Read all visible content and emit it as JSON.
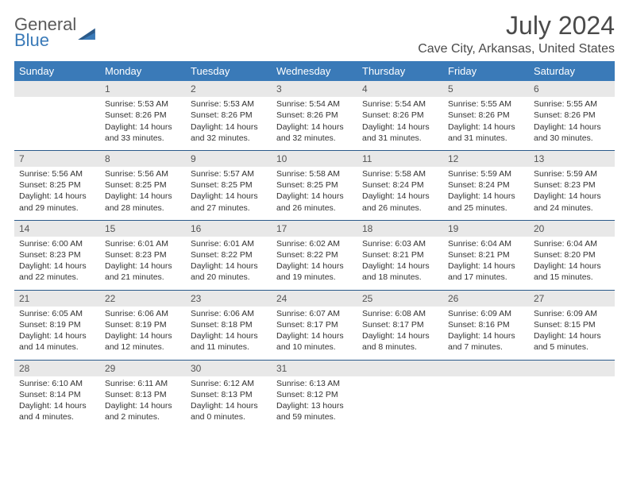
{
  "logo": {
    "word1": "General",
    "word2": "Blue"
  },
  "colors": {
    "header_bg": "#3a7ab8",
    "daynum_bg": "#e8e8e8",
    "sep": "#2a5a8a",
    "text": "#333333",
    "accent": "#3a7ab8"
  },
  "title": "July 2024",
  "location": "Cave City, Arkansas, United States",
  "day_names": [
    "Sunday",
    "Monday",
    "Tuesday",
    "Wednesday",
    "Thursday",
    "Friday",
    "Saturday"
  ],
  "weeks": [
    [
      {
        "num": "",
        "empty": true
      },
      {
        "num": "1",
        "sunrise": "Sunrise: 5:53 AM",
        "sunset": "Sunset: 8:26 PM",
        "daylight": "Daylight: 14 hours and 33 minutes."
      },
      {
        "num": "2",
        "sunrise": "Sunrise: 5:53 AM",
        "sunset": "Sunset: 8:26 PM",
        "daylight": "Daylight: 14 hours and 32 minutes."
      },
      {
        "num": "3",
        "sunrise": "Sunrise: 5:54 AM",
        "sunset": "Sunset: 8:26 PM",
        "daylight": "Daylight: 14 hours and 32 minutes."
      },
      {
        "num": "4",
        "sunrise": "Sunrise: 5:54 AM",
        "sunset": "Sunset: 8:26 PM",
        "daylight": "Daylight: 14 hours and 31 minutes."
      },
      {
        "num": "5",
        "sunrise": "Sunrise: 5:55 AM",
        "sunset": "Sunset: 8:26 PM",
        "daylight": "Daylight: 14 hours and 31 minutes."
      },
      {
        "num": "6",
        "sunrise": "Sunrise: 5:55 AM",
        "sunset": "Sunset: 8:26 PM",
        "daylight": "Daylight: 14 hours and 30 minutes."
      }
    ],
    [
      {
        "num": "7",
        "sunrise": "Sunrise: 5:56 AM",
        "sunset": "Sunset: 8:25 PM",
        "daylight": "Daylight: 14 hours and 29 minutes."
      },
      {
        "num": "8",
        "sunrise": "Sunrise: 5:56 AM",
        "sunset": "Sunset: 8:25 PM",
        "daylight": "Daylight: 14 hours and 28 minutes."
      },
      {
        "num": "9",
        "sunrise": "Sunrise: 5:57 AM",
        "sunset": "Sunset: 8:25 PM",
        "daylight": "Daylight: 14 hours and 27 minutes."
      },
      {
        "num": "10",
        "sunrise": "Sunrise: 5:58 AM",
        "sunset": "Sunset: 8:25 PM",
        "daylight": "Daylight: 14 hours and 26 minutes."
      },
      {
        "num": "11",
        "sunrise": "Sunrise: 5:58 AM",
        "sunset": "Sunset: 8:24 PM",
        "daylight": "Daylight: 14 hours and 26 minutes."
      },
      {
        "num": "12",
        "sunrise": "Sunrise: 5:59 AM",
        "sunset": "Sunset: 8:24 PM",
        "daylight": "Daylight: 14 hours and 25 minutes."
      },
      {
        "num": "13",
        "sunrise": "Sunrise: 5:59 AM",
        "sunset": "Sunset: 8:23 PM",
        "daylight": "Daylight: 14 hours and 24 minutes."
      }
    ],
    [
      {
        "num": "14",
        "sunrise": "Sunrise: 6:00 AM",
        "sunset": "Sunset: 8:23 PM",
        "daylight": "Daylight: 14 hours and 22 minutes."
      },
      {
        "num": "15",
        "sunrise": "Sunrise: 6:01 AM",
        "sunset": "Sunset: 8:23 PM",
        "daylight": "Daylight: 14 hours and 21 minutes."
      },
      {
        "num": "16",
        "sunrise": "Sunrise: 6:01 AM",
        "sunset": "Sunset: 8:22 PM",
        "daylight": "Daylight: 14 hours and 20 minutes."
      },
      {
        "num": "17",
        "sunrise": "Sunrise: 6:02 AM",
        "sunset": "Sunset: 8:22 PM",
        "daylight": "Daylight: 14 hours and 19 minutes."
      },
      {
        "num": "18",
        "sunrise": "Sunrise: 6:03 AM",
        "sunset": "Sunset: 8:21 PM",
        "daylight": "Daylight: 14 hours and 18 minutes."
      },
      {
        "num": "19",
        "sunrise": "Sunrise: 6:04 AM",
        "sunset": "Sunset: 8:21 PM",
        "daylight": "Daylight: 14 hours and 17 minutes."
      },
      {
        "num": "20",
        "sunrise": "Sunrise: 6:04 AM",
        "sunset": "Sunset: 8:20 PM",
        "daylight": "Daylight: 14 hours and 15 minutes."
      }
    ],
    [
      {
        "num": "21",
        "sunrise": "Sunrise: 6:05 AM",
        "sunset": "Sunset: 8:19 PM",
        "daylight": "Daylight: 14 hours and 14 minutes."
      },
      {
        "num": "22",
        "sunrise": "Sunrise: 6:06 AM",
        "sunset": "Sunset: 8:19 PM",
        "daylight": "Daylight: 14 hours and 12 minutes."
      },
      {
        "num": "23",
        "sunrise": "Sunrise: 6:06 AM",
        "sunset": "Sunset: 8:18 PM",
        "daylight": "Daylight: 14 hours and 11 minutes."
      },
      {
        "num": "24",
        "sunrise": "Sunrise: 6:07 AM",
        "sunset": "Sunset: 8:17 PM",
        "daylight": "Daylight: 14 hours and 10 minutes."
      },
      {
        "num": "25",
        "sunrise": "Sunrise: 6:08 AM",
        "sunset": "Sunset: 8:17 PM",
        "daylight": "Daylight: 14 hours and 8 minutes."
      },
      {
        "num": "26",
        "sunrise": "Sunrise: 6:09 AM",
        "sunset": "Sunset: 8:16 PM",
        "daylight": "Daylight: 14 hours and 7 minutes."
      },
      {
        "num": "27",
        "sunrise": "Sunrise: 6:09 AM",
        "sunset": "Sunset: 8:15 PM",
        "daylight": "Daylight: 14 hours and 5 minutes."
      }
    ],
    [
      {
        "num": "28",
        "sunrise": "Sunrise: 6:10 AM",
        "sunset": "Sunset: 8:14 PM",
        "daylight": "Daylight: 14 hours and 4 minutes."
      },
      {
        "num": "29",
        "sunrise": "Sunrise: 6:11 AM",
        "sunset": "Sunset: 8:13 PM",
        "daylight": "Daylight: 14 hours and 2 minutes."
      },
      {
        "num": "30",
        "sunrise": "Sunrise: 6:12 AM",
        "sunset": "Sunset: 8:13 PM",
        "daylight": "Daylight: 14 hours and 0 minutes."
      },
      {
        "num": "31",
        "sunrise": "Sunrise: 6:13 AM",
        "sunset": "Sunset: 8:12 PM",
        "daylight": "Daylight: 13 hours and 59 minutes."
      },
      {
        "num": "",
        "empty": true
      },
      {
        "num": "",
        "empty": true
      },
      {
        "num": "",
        "empty": true
      }
    ]
  ]
}
